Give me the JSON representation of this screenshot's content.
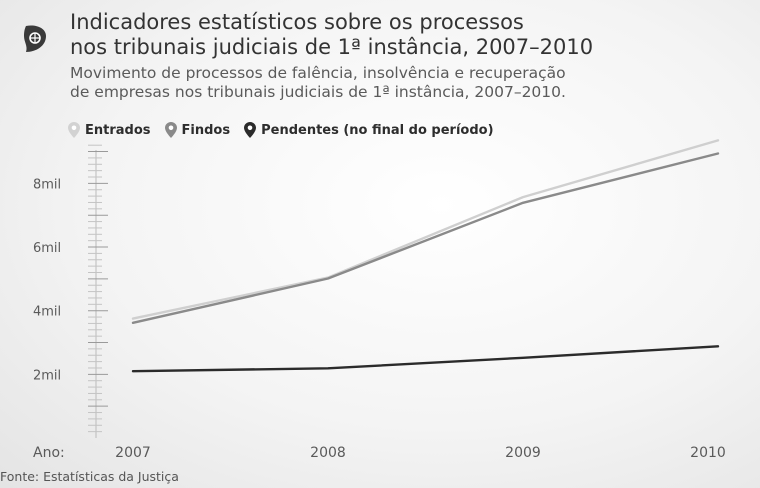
{
  "header": {
    "title_line1": "Indicadores estatísticos sobre os processos",
    "title_line2": "nos tribunais judiciais de 1ª instância, 2007–2010",
    "subtitle_line1": "Movimento de processos de falência, insolvência e recuperação",
    "subtitle_line2": "de empresas nos tribunais judiciais de 1ª instância, 2007–2010."
  },
  "legend": {
    "items": [
      {
        "label": "Entrados",
        "color": "#cfcfcf"
      },
      {
        "label": "Findos",
        "color": "#8a8a8a"
      },
      {
        "label": "Pendentes (no final do período)",
        "color": "#2b2b2b"
      }
    ]
  },
  "source": "Fonte: Estatísticas da Justiça",
  "chart_data": {
    "type": "line",
    "x": [
      2007,
      2008,
      2009,
      2010
    ],
    "xlabel": "Ano:",
    "ylim": [
      0,
      9300
    ],
    "yticks": [
      2000,
      4000,
      6000,
      8000
    ],
    "ytick_labels": [
      "2mil",
      "4mil",
      "6mil",
      "8mil"
    ],
    "grid": false,
    "legend_position": "top-left",
    "series": [
      {
        "name": "Entrados",
        "color": "#cfcfcf",
        "values": [
          3750,
          5040,
          7570,
          9350
        ]
      },
      {
        "name": "Findos",
        "color": "#8a8a8a",
        "values": [
          3620,
          5010,
          7390,
          8940
        ]
      },
      {
        "name": "Pendentes (no final do período)",
        "color": "#2b2b2b",
        "values": [
          2100,
          2190,
          2520,
          2880
        ]
      }
    ]
  }
}
